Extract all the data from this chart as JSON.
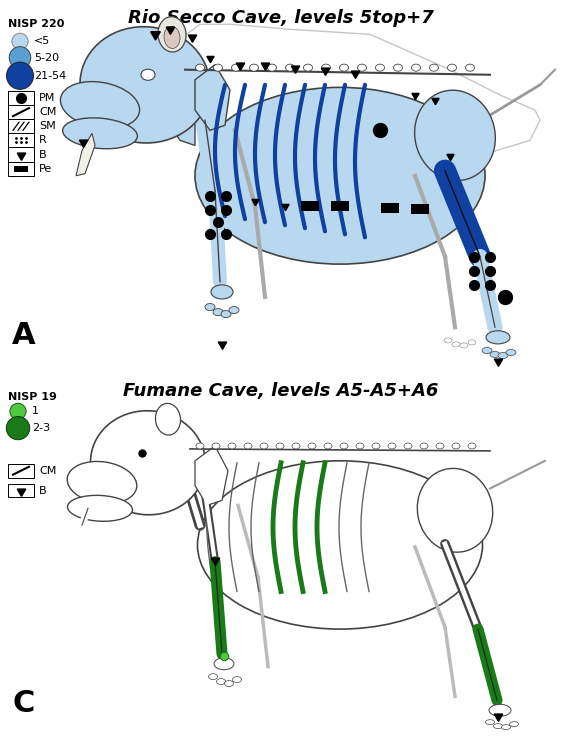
{
  "title_top": "Rio Secco Cave, levels 5top+7",
  "title_bottom": "Fumane Cave, levels A5-A5+A6",
  "label_A": "A",
  "label_C": "C",
  "nisp_top": "NISP 220",
  "nisp_bottom": "NISP 19",
  "bg_color": "#ffffff",
  "blue_light": "#b8d8f0",
  "blue_mid": "#5a9fd4",
  "blue_dark": "#1040a0",
  "green_mid": "#50c840",
  "green_dark": "#1a7a1a",
  "body_outline": "#444444",
  "skeleton_line": "#666666"
}
